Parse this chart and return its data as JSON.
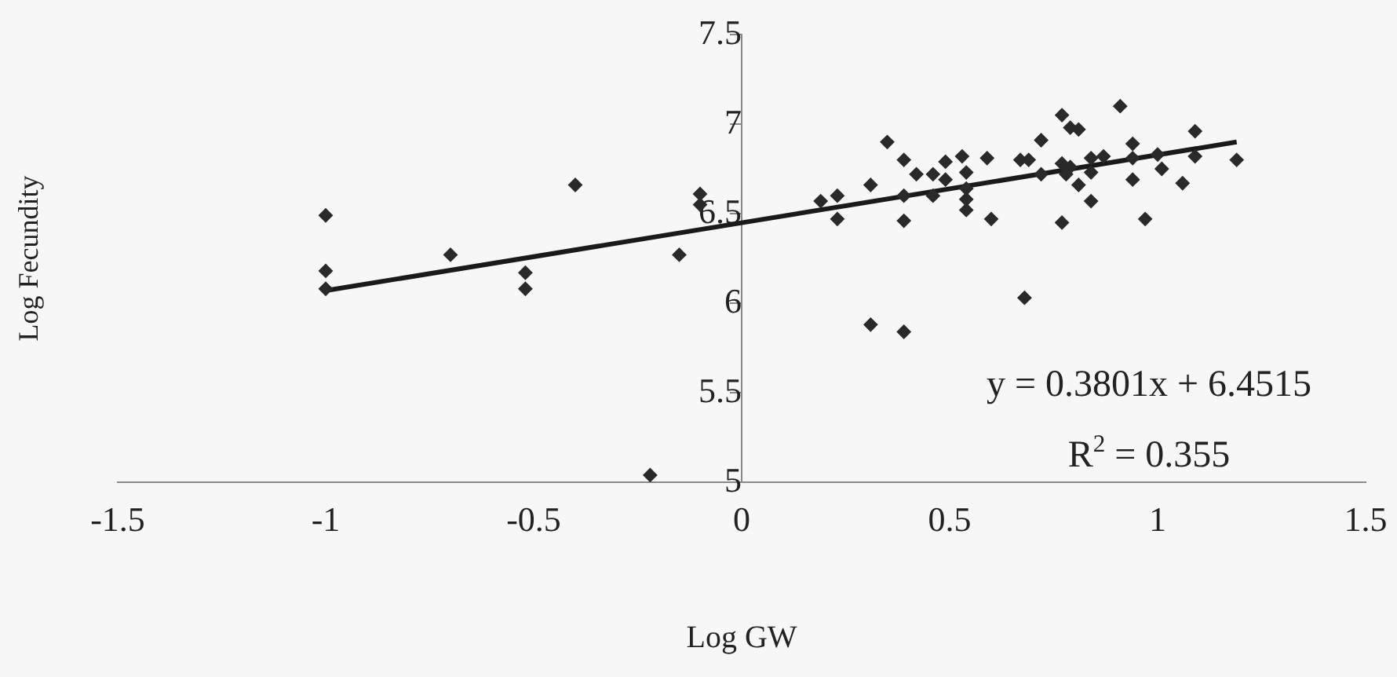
{
  "chart_data": {
    "type": "scatter",
    "xlabel": "Log GW",
    "ylabel": "Log Fecundity",
    "xlim": [
      -1.5,
      1.5
    ],
    "xticks": [
      -1.5,
      -1,
      -0.5,
      0,
      0.5,
      1,
      1.5
    ],
    "ylim": [
      5,
      7.5
    ],
    "yticks": [
      5,
      5.5,
      6,
      6.5,
      7,
      7.5
    ],
    "grid": false,
    "legend": false,
    "marker": "diamond",
    "annotations": [
      "y = 0.3801x + 6.4515",
      "R$^{2}$ = 0.355"
    ],
    "series": [
      {
        "color": "#2a2a2a",
        "x": [
          -1,
          -1,
          -1,
          -0.7,
          -0.52,
          -0.52,
          -0.4,
          -0.15,
          -0.1,
          -0.1,
          -0.22,
          0.19,
          0.23,
          0.23,
          0.31,
          0.35,
          0.31,
          0.39,
          0.39,
          0.39,
          0.39,
          0.42,
          0.46,
          0.46,
          0.49,
          0.49,
          0.53,
          0.54,
          0.54,
          0.54,
          0.54,
          0.59,
          0.6,
          0.67,
          0.69,
          0.68,
          0.72,
          0.72,
          0.77,
          0.77,
          0.78,
          0.79,
          0.79,
          0.81,
          0.81,
          0.77,
          0.84,
          0.84,
          0.84,
          0.87,
          0.91,
          0.94,
          0.94,
          0.94,
          0.97,
          1,
          1.01,
          1.06,
          1.09,
          1.09,
          1.19
        ],
        "values": [
          6.49,
          6.18,
          6.08,
          6.27,
          6.17,
          6.08,
          6.66,
          6.27,
          6.61,
          6.55,
          5.04,
          6.57,
          6.6,
          6.47,
          6.66,
          6.9,
          5.88,
          5.84,
          6.8,
          6.6,
          6.46,
          6.72,
          6.6,
          6.72,
          6.79,
          6.69,
          6.82,
          6.73,
          6.58,
          6.52,
          6.64,
          6.81,
          6.47,
          6.8,
          6.8,
          6.03,
          6.91,
          6.72,
          6.78,
          7.05,
          6.72,
          6.98,
          6.76,
          6.97,
          6.66,
          6.45,
          6.73,
          6.57,
          6.81,
          6.82,
          7.1,
          6.89,
          6.69,
          6.81,
          6.47,
          6.83,
          6.75,
          6.67,
          6.96,
          6.82,
          6.8
        ]
      },
      {
        "type": "line",
        "color": "#1a1a1a",
        "marker": "none",
        "x": [
          -1,
          1.19
        ],
        "values": [
          6.07,
          6.9
        ]
      }
    ]
  }
}
